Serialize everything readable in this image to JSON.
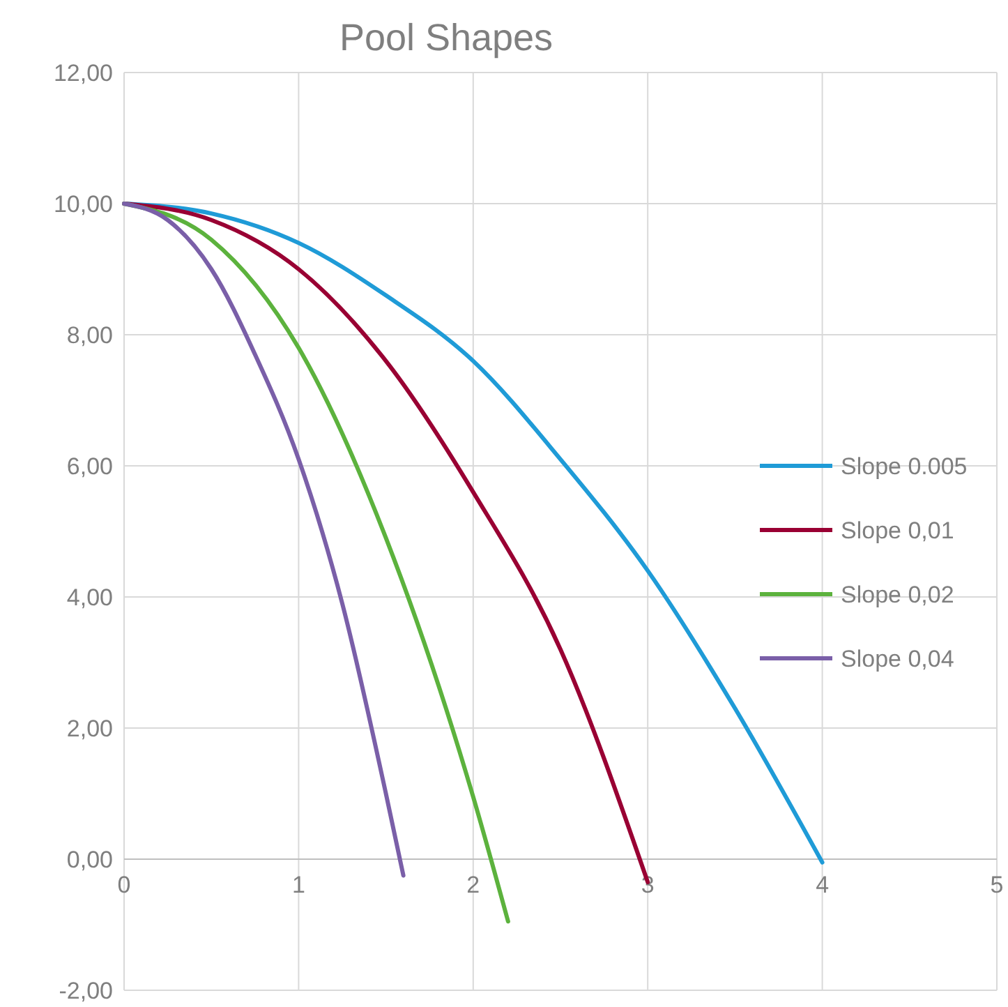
{
  "chart_data": {
    "type": "line",
    "title": "Pool Shapes",
    "xlim": [
      0,
      5
    ],
    "xticks": [
      0,
      1,
      2,
      3,
      4,
      5
    ],
    "ylim": [
      -2,
      12
    ],
    "yticks": [
      {
        "value": -2,
        "label": "-2,00"
      },
      {
        "value": 0,
        "label": "0,00"
      },
      {
        "value": 2,
        "label": "2,00"
      },
      {
        "value": 4,
        "label": "4,00"
      },
      {
        "value": 6,
        "label": "6,00"
      },
      {
        "value": 8,
        "label": "8,00"
      },
      {
        "value": 10,
        "label": "10,00"
      },
      {
        "value": 12,
        "label": "12,00"
      }
    ],
    "grid": true,
    "legend": "right",
    "marker": "none",
    "line_style": "solid",
    "series": [
      {
        "name": "Slope 0.005",
        "color": "#1f9bd7",
        "x": [
          0,
          0.5,
          1,
          1.5,
          2,
          2.5,
          3,
          3.5,
          4
        ],
        "values": [
          10,
          9.85,
          9.4,
          8.6,
          7.6,
          6.1,
          4.4,
          2.3,
          -0.05
        ]
      },
      {
        "name": "Slope 0,01",
        "color": "#990033",
        "x": [
          0,
          0.5,
          1,
          1.5,
          2,
          2.5,
          3
        ],
        "values": [
          10,
          9.75,
          9.0,
          7.6,
          5.6,
          3.2,
          -0.35
        ]
      },
      {
        "name": "Slope 0,02",
        "color": "#5cb23d",
        "x": [
          0,
          0.5,
          1,
          1.5,
          2,
          2.2
        ],
        "values": [
          10,
          9.45,
          7.8,
          4.9,
          0.95,
          -0.95
        ]
      },
      {
        "name": "Slope 0,04",
        "color": "#7a5fa8",
        "x": [
          0,
          0.25,
          0.5,
          0.75,
          1,
          1.25,
          1.5,
          1.6
        ],
        "values": [
          10,
          9.75,
          9.0,
          7.7,
          6.1,
          3.9,
          1.0,
          -0.25
        ]
      }
    ]
  }
}
